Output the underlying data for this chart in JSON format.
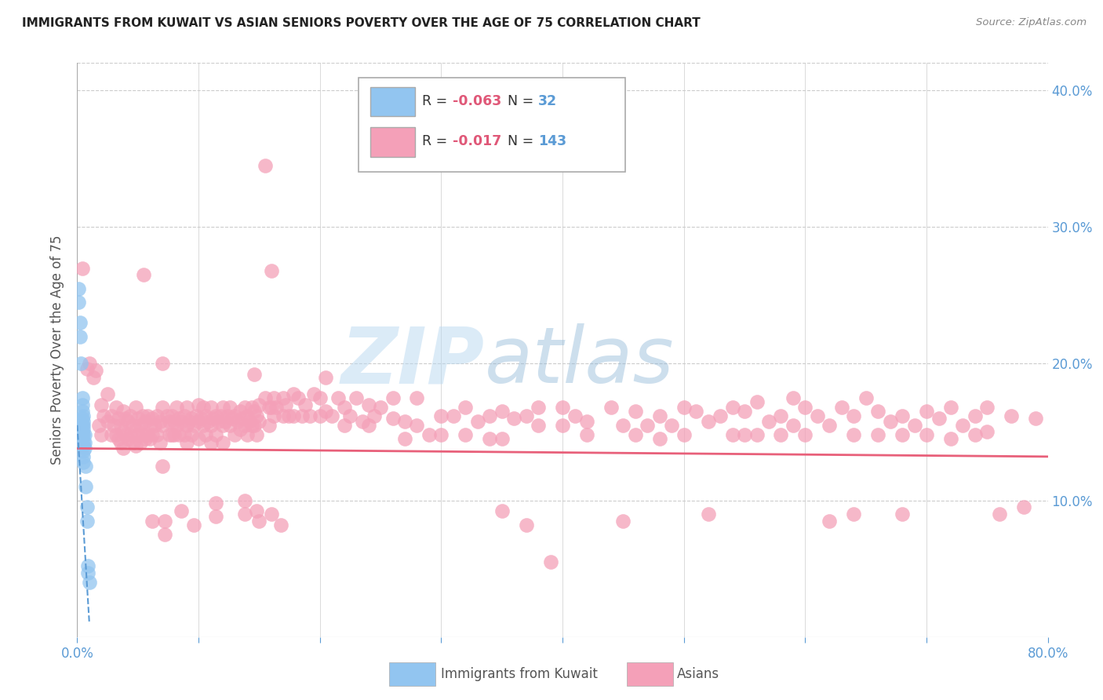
{
  "title": "IMMIGRANTS FROM KUWAIT VS ASIAN SENIORS POVERTY OVER THE AGE OF 75 CORRELATION CHART",
  "source": "Source: ZipAtlas.com",
  "ylabel": "Seniors Poverty Over the Age of 75",
  "xlim": [
    0.0,
    0.8
  ],
  "ylim": [
    0.0,
    0.42
  ],
  "xticks": [
    0.0,
    0.1,
    0.2,
    0.3,
    0.4,
    0.5,
    0.6,
    0.7,
    0.8
  ],
  "yticks": [
    0.0,
    0.1,
    0.2,
    0.3,
    0.4
  ],
  "axis_color": "#5b9bd5",
  "background_color": "#ffffff",
  "watermark_zip": "ZIP",
  "watermark_atlas": "atlas",
  "blue_color": "#92c5f0",
  "pink_color": "#f4a0b8",
  "trend_blue_color": "#5b9bd5",
  "trend_pink_color": "#e8607a",
  "blue_scatter": [
    [
      0.001,
      0.255
    ],
    [
      0.001,
      0.245
    ],
    [
      0.002,
      0.23
    ],
    [
      0.002,
      0.22
    ],
    [
      0.003,
      0.2
    ],
    [
      0.004,
      0.175
    ],
    [
      0.004,
      0.17
    ],
    [
      0.004,
      0.165
    ],
    [
      0.004,
      0.16
    ],
    [
      0.004,
      0.155
    ],
    [
      0.004,
      0.15
    ],
    [
      0.004,
      0.148
    ],
    [
      0.004,
      0.145
    ],
    [
      0.005,
      0.162
    ],
    [
      0.005,
      0.158
    ],
    [
      0.005,
      0.155
    ],
    [
      0.005,
      0.152
    ],
    [
      0.005,
      0.148
    ],
    [
      0.005,
      0.143
    ],
    [
      0.005,
      0.14
    ],
    [
      0.005,
      0.136
    ],
    [
      0.005,
      0.132
    ],
    [
      0.005,
      0.128
    ],
    [
      0.006,
      0.148
    ],
    [
      0.006,
      0.142
    ],
    [
      0.006,
      0.138
    ],
    [
      0.007,
      0.125
    ],
    [
      0.007,
      0.11
    ],
    [
      0.008,
      0.095
    ],
    [
      0.008,
      0.085
    ],
    [
      0.009,
      0.052
    ],
    [
      0.009,
      0.047
    ],
    [
      0.01,
      0.04
    ]
  ],
  "pink_scatter": [
    [
      0.004,
      0.27
    ],
    [
      0.008,
      0.196
    ],
    [
      0.01,
      0.2
    ],
    [
      0.013,
      0.19
    ],
    [
      0.015,
      0.195
    ],
    [
      0.018,
      0.155
    ],
    [
      0.02,
      0.17
    ],
    [
      0.02,
      0.148
    ],
    [
      0.022,
      0.162
    ],
    [
      0.025,
      0.178
    ],
    [
      0.025,
      0.158
    ],
    [
      0.028,
      0.162
    ],
    [
      0.028,
      0.148
    ],
    [
      0.03,
      0.155
    ],
    [
      0.032,
      0.168
    ],
    [
      0.032,
      0.148
    ],
    [
      0.034,
      0.16
    ],
    [
      0.034,
      0.145
    ],
    [
      0.036,
      0.155
    ],
    [
      0.036,
      0.142
    ],
    [
      0.038,
      0.165
    ],
    [
      0.038,
      0.15
    ],
    [
      0.038,
      0.138
    ],
    [
      0.04,
      0.16
    ],
    [
      0.04,
      0.148
    ],
    [
      0.042,
      0.158
    ],
    [
      0.042,
      0.145
    ],
    [
      0.044,
      0.162
    ],
    [
      0.044,
      0.148
    ],
    [
      0.046,
      0.155
    ],
    [
      0.046,
      0.142
    ],
    [
      0.048,
      0.168
    ],
    [
      0.048,
      0.152
    ],
    [
      0.048,
      0.14
    ],
    [
      0.05,
      0.16
    ],
    [
      0.05,
      0.148
    ],
    [
      0.052,
      0.155
    ],
    [
      0.052,
      0.142
    ],
    [
      0.054,
      0.162
    ],
    [
      0.054,
      0.148
    ],
    [
      0.055,
      0.265
    ],
    [
      0.056,
      0.158
    ],
    [
      0.056,
      0.145
    ],
    [
      0.058,
      0.162
    ],
    [
      0.058,
      0.148
    ],
    [
      0.06,
      0.155
    ],
    [
      0.06,
      0.145
    ],
    [
      0.062,
      0.16
    ],
    [
      0.062,
      0.148
    ],
    [
      0.062,
      0.085
    ],
    [
      0.064,
      0.155
    ],
    [
      0.066,
      0.162
    ],
    [
      0.066,
      0.148
    ],
    [
      0.068,
      0.158
    ],
    [
      0.068,
      0.142
    ],
    [
      0.07,
      0.2
    ],
    [
      0.07,
      0.168
    ],
    [
      0.07,
      0.155
    ],
    [
      0.07,
      0.125
    ],
    [
      0.072,
      0.085
    ],
    [
      0.072,
      0.075
    ],
    [
      0.074,
      0.162
    ],
    [
      0.076,
      0.158
    ],
    [
      0.076,
      0.148
    ],
    [
      0.078,
      0.162
    ],
    [
      0.078,
      0.148
    ],
    [
      0.08,
      0.158
    ],
    [
      0.08,
      0.148
    ],
    [
      0.082,
      0.168
    ],
    [
      0.082,
      0.155
    ],
    [
      0.084,
      0.16
    ],
    [
      0.084,
      0.148
    ],
    [
      0.086,
      0.158
    ],
    [
      0.086,
      0.092
    ],
    [
      0.088,
      0.162
    ],
    [
      0.088,
      0.148
    ],
    [
      0.09,
      0.168
    ],
    [
      0.09,
      0.155
    ],
    [
      0.09,
      0.142
    ],
    [
      0.092,
      0.158
    ],
    [
      0.094,
      0.16
    ],
    [
      0.094,
      0.148
    ],
    [
      0.096,
      0.155
    ],
    [
      0.096,
      0.082
    ],
    [
      0.098,
      0.162
    ],
    [
      0.1,
      0.17
    ],
    [
      0.1,
      0.158
    ],
    [
      0.1,
      0.145
    ],
    [
      0.102,
      0.16
    ],
    [
      0.104,
      0.168
    ],
    [
      0.104,
      0.155
    ],
    [
      0.106,
      0.162
    ],
    [
      0.106,
      0.148
    ],
    [
      0.108,
      0.158
    ],
    [
      0.11,
      0.168
    ],
    [
      0.11,
      0.155
    ],
    [
      0.11,
      0.142
    ],
    [
      0.112,
      0.16
    ],
    [
      0.114,
      0.162
    ],
    [
      0.114,
      0.148
    ],
    [
      0.114,
      0.098
    ],
    [
      0.114,
      0.088
    ],
    [
      0.116,
      0.158
    ],
    [
      0.118,
      0.162
    ],
    [
      0.12,
      0.168
    ],
    [
      0.12,
      0.155
    ],
    [
      0.12,
      0.142
    ],
    [
      0.122,
      0.158
    ],
    [
      0.124,
      0.162
    ],
    [
      0.126,
      0.168
    ],
    [
      0.126,
      0.155
    ],
    [
      0.128,
      0.16
    ],
    [
      0.13,
      0.162
    ],
    [
      0.13,
      0.148
    ],
    [
      0.132,
      0.158
    ],
    [
      0.134,
      0.165
    ],
    [
      0.134,
      0.152
    ],
    [
      0.136,
      0.16
    ],
    [
      0.138,
      0.168
    ],
    [
      0.138,
      0.155
    ],
    [
      0.138,
      0.1
    ],
    [
      0.138,
      0.09
    ],
    [
      0.14,
      0.162
    ],
    [
      0.14,
      0.148
    ],
    [
      0.142,
      0.158
    ],
    [
      0.144,
      0.168
    ],
    [
      0.144,
      0.155
    ],
    [
      0.146,
      0.192
    ],
    [
      0.146,
      0.165
    ],
    [
      0.146,
      0.155
    ],
    [
      0.148,
      0.162
    ],
    [
      0.148,
      0.148
    ],
    [
      0.148,
      0.092
    ],
    [
      0.15,
      0.17
    ],
    [
      0.15,
      0.158
    ],
    [
      0.15,
      0.085
    ],
    [
      0.155,
      0.345
    ],
    [
      0.155,
      0.175
    ],
    [
      0.158,
      0.168
    ],
    [
      0.158,
      0.155
    ],
    [
      0.16,
      0.268
    ],
    [
      0.16,
      0.168
    ],
    [
      0.16,
      0.09
    ],
    [
      0.162,
      0.175
    ],
    [
      0.162,
      0.162
    ],
    [
      0.164,
      0.168
    ],
    [
      0.168,
      0.082
    ],
    [
      0.17,
      0.175
    ],
    [
      0.17,
      0.162
    ],
    [
      0.172,
      0.17
    ],
    [
      0.174,
      0.162
    ],
    [
      0.178,
      0.178
    ],
    [
      0.178,
      0.162
    ],
    [
      0.182,
      0.175
    ],
    [
      0.185,
      0.162
    ],
    [
      0.188,
      0.17
    ],
    [
      0.192,
      0.162
    ],
    [
      0.195,
      0.178
    ],
    [
      0.2,
      0.175
    ],
    [
      0.2,
      0.162
    ],
    [
      0.205,
      0.19
    ],
    [
      0.205,
      0.165
    ],
    [
      0.21,
      0.162
    ],
    [
      0.215,
      0.175
    ],
    [
      0.22,
      0.168
    ],
    [
      0.22,
      0.155
    ],
    [
      0.225,
      0.162
    ],
    [
      0.23,
      0.175
    ],
    [
      0.235,
      0.158
    ],
    [
      0.24,
      0.17
    ],
    [
      0.24,
      0.155
    ],
    [
      0.245,
      0.162
    ],
    [
      0.25,
      0.168
    ],
    [
      0.26,
      0.175
    ],
    [
      0.26,
      0.16
    ],
    [
      0.27,
      0.158
    ],
    [
      0.27,
      0.145
    ],
    [
      0.28,
      0.175
    ],
    [
      0.28,
      0.155
    ],
    [
      0.29,
      0.148
    ],
    [
      0.3,
      0.162
    ],
    [
      0.3,
      0.148
    ],
    [
      0.31,
      0.162
    ],
    [
      0.32,
      0.168
    ],
    [
      0.32,
      0.148
    ],
    [
      0.33,
      0.158
    ],
    [
      0.34,
      0.162
    ],
    [
      0.34,
      0.145
    ],
    [
      0.35,
      0.165
    ],
    [
      0.35,
      0.145
    ],
    [
      0.35,
      0.092
    ],
    [
      0.36,
      0.16
    ],
    [
      0.37,
      0.162
    ],
    [
      0.37,
      0.082
    ],
    [
      0.38,
      0.168
    ],
    [
      0.38,
      0.155
    ],
    [
      0.39,
      0.055
    ],
    [
      0.4,
      0.168
    ],
    [
      0.4,
      0.155
    ],
    [
      0.41,
      0.162
    ],
    [
      0.42,
      0.158
    ],
    [
      0.42,
      0.148
    ],
    [
      0.44,
      0.168
    ],
    [
      0.45,
      0.155
    ],
    [
      0.45,
      0.085
    ],
    [
      0.46,
      0.165
    ],
    [
      0.46,
      0.148
    ],
    [
      0.47,
      0.155
    ],
    [
      0.48,
      0.162
    ],
    [
      0.48,
      0.145
    ],
    [
      0.49,
      0.155
    ],
    [
      0.5,
      0.168
    ],
    [
      0.5,
      0.148
    ],
    [
      0.51,
      0.165
    ],
    [
      0.52,
      0.158
    ],
    [
      0.52,
      0.09
    ],
    [
      0.53,
      0.162
    ],
    [
      0.54,
      0.168
    ],
    [
      0.54,
      0.148
    ],
    [
      0.55,
      0.165
    ],
    [
      0.55,
      0.148
    ],
    [
      0.56,
      0.172
    ],
    [
      0.56,
      0.148
    ],
    [
      0.57,
      0.158
    ],
    [
      0.58,
      0.162
    ],
    [
      0.58,
      0.148
    ],
    [
      0.59,
      0.175
    ],
    [
      0.59,
      0.155
    ],
    [
      0.6,
      0.168
    ],
    [
      0.6,
      0.148
    ],
    [
      0.61,
      0.162
    ],
    [
      0.62,
      0.155
    ],
    [
      0.62,
      0.085
    ],
    [
      0.63,
      0.168
    ],
    [
      0.64,
      0.162
    ],
    [
      0.64,
      0.148
    ],
    [
      0.64,
      0.09
    ],
    [
      0.65,
      0.175
    ],
    [
      0.66,
      0.165
    ],
    [
      0.66,
      0.148
    ],
    [
      0.67,
      0.158
    ],
    [
      0.68,
      0.162
    ],
    [
      0.68,
      0.148
    ],
    [
      0.68,
      0.09
    ],
    [
      0.69,
      0.155
    ],
    [
      0.7,
      0.165
    ],
    [
      0.7,
      0.148
    ],
    [
      0.71,
      0.16
    ],
    [
      0.72,
      0.168
    ],
    [
      0.72,
      0.145
    ],
    [
      0.73,
      0.155
    ],
    [
      0.74,
      0.162
    ],
    [
      0.74,
      0.148
    ],
    [
      0.75,
      0.168
    ],
    [
      0.75,
      0.15
    ],
    [
      0.76,
      0.09
    ],
    [
      0.77,
      0.162
    ],
    [
      0.78,
      0.095
    ],
    [
      0.79,
      0.16
    ]
  ],
  "blue_trend_x": [
    0.0,
    0.01
  ],
  "blue_trend_y": [
    0.155,
    0.01
  ],
  "pink_trend_x": [
    0.0,
    0.8
  ],
  "pink_trend_y": [
    0.138,
    0.132
  ]
}
